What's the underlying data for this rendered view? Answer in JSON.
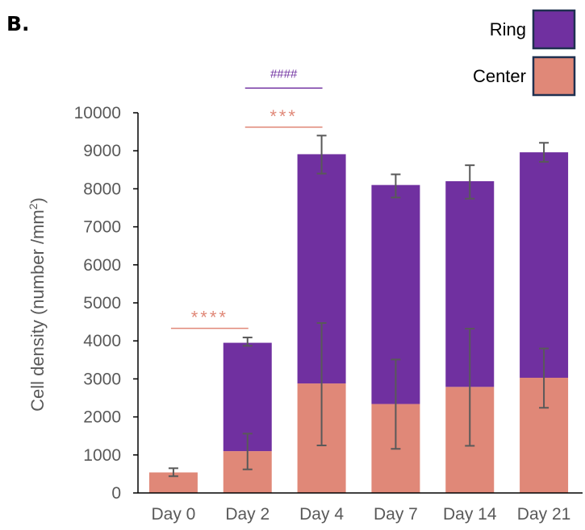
{
  "panel_label": "B.",
  "chart_data": {
    "type": "bar",
    "stacked": true,
    "categories": [
      "Day 0",
      "Day 2",
      "Day 4",
      "Day 7",
      "Day 14",
      "Day 21"
    ],
    "series": [
      {
        "name": "Center",
        "color": "#e08878",
        "values": [
          540,
          1100,
          2880,
          2340,
          2790,
          3030
        ],
        "error": [
          [
            440,
            650
          ],
          [
            620,
            1560
          ],
          [
            1250,
            4470
          ],
          [
            1160,
            3510
          ],
          [
            1240,
            4320
          ],
          [
            2240,
            3800
          ]
        ]
      },
      {
        "name": "Ring",
        "color": "#7030a0",
        "values": [
          0,
          2850,
          6030,
          5760,
          5410,
          5930
        ],
        "error": [
          [
            null,
            null
          ],
          [
            3870,
            4090
          ],
          [
            8400,
            9400
          ],
          [
            7770,
            8380
          ],
          [
            7740,
            8620
          ],
          [
            8710,
            9210
          ]
        ]
      }
    ],
    "ylabel": "Cell density (number /mm",
    "ylabel_superscript": "2",
    "ylabel_suffix": ")",
    "ylim": [
      0,
      10000
    ],
    "yticks": [
      0,
      1000,
      2000,
      3000,
      4000,
      5000,
      6000,
      7000,
      8000,
      9000,
      10000
    ],
    "grid": false,
    "legend": {
      "placement": "top-right",
      "order": [
        "Ring",
        "Center"
      ],
      "border_color": "#1f3050"
    },
    "annotations": [
      {
        "text": "****",
        "from": "Day 0",
        "to": "Day 2",
        "y": 4330,
        "color": "#e08878"
      },
      {
        "text": "***",
        "from": "Day 2",
        "to": "Day 4",
        "y": 9620,
        "color": "#e08878"
      },
      {
        "text": "####",
        "from": "Day 2",
        "to": "Day 4",
        "y": 10650,
        "color": "#7030a0"
      }
    ],
    "colors": {
      "axis": "#000000",
      "tick_text": "#595959",
      "error_bar": "#595959"
    }
  }
}
